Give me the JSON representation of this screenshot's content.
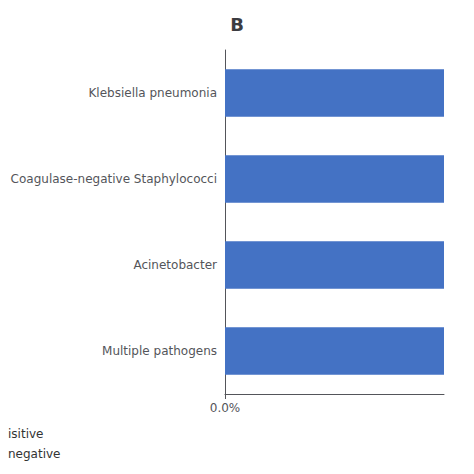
{
  "chart_data": {
    "type": "bar",
    "orientation": "horizontal",
    "title": "B",
    "categories": [
      "Multiple pathogens",
      "Acinetobacter",
      "Coagulase-negative Staphylococci",
      "Klebsiella pneumonia"
    ],
    "values": [
      5,
      5,
      5,
      5
    ],
    "color": "#4472C4",
    "xlim": [
      0,
      5
    ],
    "xticks": [
      {
        "value": 0,
        "label": "0.0%"
      }
    ],
    "grid": false,
    "annotations": [
      "isitive",
      "negative"
    ]
  }
}
